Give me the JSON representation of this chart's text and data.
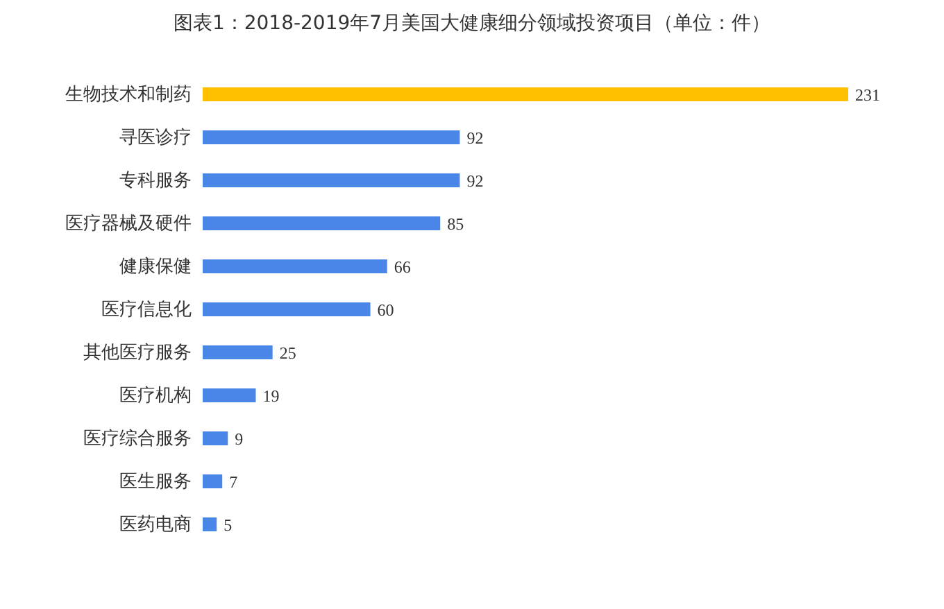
{
  "chart_data": {
    "type": "bar",
    "orientation": "horizontal",
    "title": "图表1：2018-2019年7月美国大健康细分领域投资项目（单位：件）",
    "categories": [
      "生物技术和制药",
      "寻医诊疗",
      "专科服务",
      "医疗器械及硬件",
      "健康保健",
      "医疗信息化",
      "其他医疗服务",
      "医疗机构",
      "医疗综合服务",
      "医生服务",
      "医药电商"
    ],
    "values": [
      231,
      92,
      92,
      85,
      66,
      60,
      25,
      19,
      9,
      7,
      5
    ],
    "colors": [
      "#ffc000",
      "#4a86e8",
      "#4a86e8",
      "#4a86e8",
      "#4a86e8",
      "#4a86e8",
      "#4a86e8",
      "#4a86e8",
      "#4a86e8",
      "#4a86e8",
      "#4a86e8"
    ],
    "data_labels": true
  }
}
